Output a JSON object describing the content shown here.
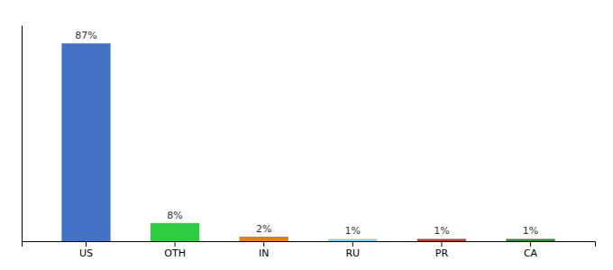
{
  "chart_data": {
    "type": "bar",
    "categories": [
      "US",
      "OTH",
      "IN",
      "RU",
      "PR",
      "CA"
    ],
    "values": [
      87,
      8,
      2,
      1,
      1,
      1
    ],
    "value_labels": [
      "87%",
      "8%",
      "2%",
      "1%",
      "1%",
      "1%"
    ],
    "data_labels": true,
    "colors": [
      "#4472c4",
      "#2ecc40",
      "#e67e00",
      "#87ceeb",
      "#c0392b",
      "#2d8a2d"
    ],
    "ylim": [
      0,
      95
    ],
    "tick_labels": "x"
  }
}
